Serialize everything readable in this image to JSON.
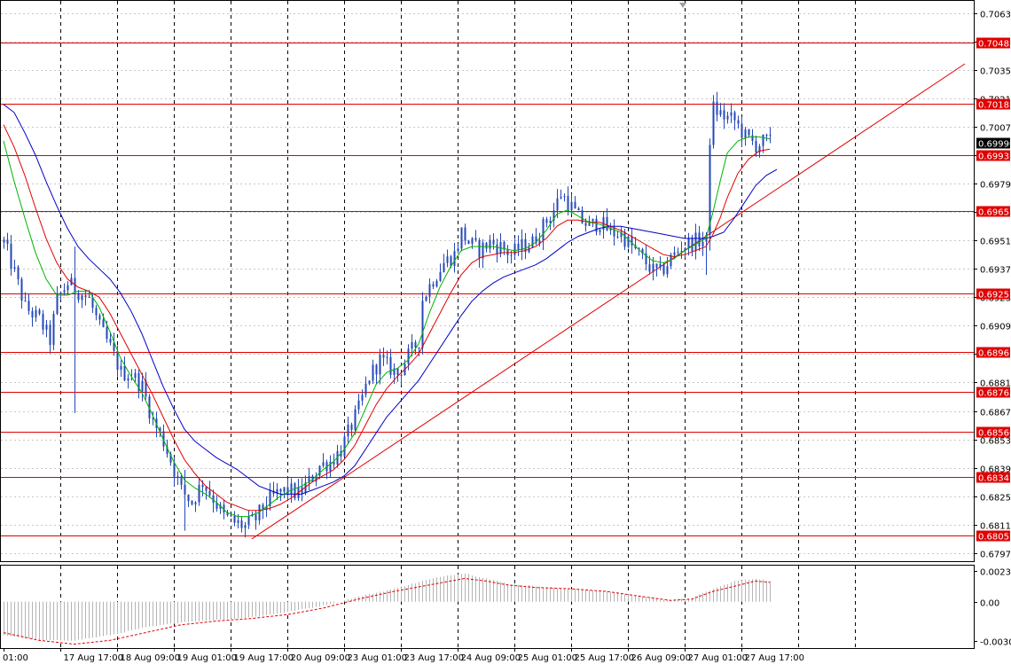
{
  "chart_data": {
    "type": "candlestick",
    "symbol": "",
    "title": "",
    "main_y_ticks": [
      "0.70630",
      "0.70490",
      "0.70350",
      "0.70210",
      "0.70070",
      "0.69930",
      "0.69790",
      "0.69650",
      "0.69510",
      "0.69370",
      "0.69230",
      "0.69090",
      "0.68950",
      "0.68810",
      "0.68670",
      "0.68530",
      "0.68390",
      "0.68250",
      "0.68110",
      "0.67970"
    ],
    "main_ylim": [
      0.6793,
      0.7069
    ],
    "x_ticks": [
      "01:00",
      "17 Aug 17:00",
      "18 Aug 09:00",
      "19 Aug 01:00",
      "19 Aug 17:00",
      "20 Aug 09:00",
      "23 Aug 01:00",
      "23 Aug 17:00",
      "24 Aug 09:00",
      "25 Aug 01:00",
      "25 Aug 17:00",
      "26 Aug 09:00",
      "27 Aug 01:00",
      "27 Aug 17:00"
    ],
    "bar_count": 217,
    "horizontal_levels": [
      {
        "label": "0.70485",
        "value": 0.70485
      },
      {
        "label": "0.70183",
        "value": 0.70183
      },
      {
        "label": "0.69931",
        "value": 0.69931
      },
      {
        "label": "0.69657",
        "value": 0.69657
      },
      {
        "label": "0.69251",
        "value": 0.69251
      },
      {
        "label": "0.68961",
        "value": 0.68961
      },
      {
        "label": "0.68765",
        "value": 0.68765
      },
      {
        "label": "0.68566",
        "value": 0.68566
      },
      {
        "label": "0.68347",
        "value": 0.68347
      },
      {
        "label": "0.68057",
        "value": 0.68057
      }
    ],
    "current_price_label": "0.69990",
    "current_price": 0.6999,
    "trendline": {
      "from": {
        "bar": 70,
        "price": 0.6804
      },
      "to": {
        "bar": 271,
        "price": 0.7038
      }
    },
    "close_path": [
      [
        0,
        0.695
      ],
      [
        3,
        0.6935
      ],
      [
        6,
        0.6918
      ],
      [
        10,
        0.6912
      ],
      [
        13,
        0.6902
      ],
      [
        15,
        0.6922
      ],
      [
        18,
        0.693
      ],
      [
        21,
        0.6926
      ],
      [
        24,
        0.6922
      ],
      [
        27,
        0.6908
      ],
      [
        30,
        0.6898
      ],
      [
        33,
        0.6886
      ],
      [
        36,
        0.6885
      ],
      [
        39,
        0.6879
      ],
      [
        42,
        0.6862
      ],
      [
        45,
        0.6852
      ],
      [
        48,
        0.6838
      ],
      [
        50,
        0.6828
      ],
      [
        53,
        0.6822
      ],
      [
        56,
        0.6832
      ],
      [
        59,
        0.6824
      ],
      [
        62,
        0.6815
      ],
      [
        65,
        0.6812
      ],
      [
        68,
        0.681
      ],
      [
        71,
        0.6814
      ],
      [
        74,
        0.6822
      ],
      [
        77,
        0.6826
      ],
      [
        80,
        0.6828
      ],
      [
        83,
        0.6826
      ],
      [
        86,
        0.6832
      ],
      [
        89,
        0.684
      ],
      [
        92,
        0.6842
      ],
      [
        95,
        0.6848
      ],
      [
        97,
        0.6856
      ],
      [
        100,
        0.6868
      ],
      [
        103,
        0.6884
      ],
      [
        106,
        0.6892
      ],
      [
        109,
        0.6888
      ],
      [
        111,
        0.6885
      ],
      [
        114,
        0.6894
      ],
      [
        117,
        0.6902
      ],
      [
        118,
        0.6922
      ],
      [
        121,
        0.6932
      ],
      [
        124,
        0.694
      ],
      [
        127,
        0.6944
      ],
      [
        129,
        0.6955
      ],
      [
        131,
        0.695
      ],
      [
        134,
        0.6946
      ],
      [
        137,
        0.695
      ],
      [
        140,
        0.6948
      ],
      [
        143,
        0.6944
      ],
      [
        146,
        0.6948
      ],
      [
        149,
        0.695
      ],
      [
        152,
        0.6958
      ],
      [
        155,
        0.6966
      ],
      [
        157,
        0.6974
      ],
      [
        159,
        0.697
      ],
      [
        162,
        0.6962
      ],
      [
        165,
        0.6958
      ],
      [
        168,
        0.696
      ],
      [
        171,
        0.6955
      ],
      [
        174,
        0.6954
      ],
      [
        177,
        0.6948
      ],
      [
        180,
        0.6942
      ],
      [
        183,
        0.6936
      ],
      [
        185,
        0.6935
      ],
      [
        188,
        0.6942
      ],
      [
        191,
        0.6948
      ],
      [
        194,
        0.695
      ],
      [
        196,
        0.6951
      ],
      [
        198,
        0.695
      ],
      [
        199,
        0.6998
      ],
      [
        200,
        0.7016
      ],
      [
        203,
        0.7012
      ],
      [
        206,
        0.701
      ],
      [
        209,
        0.7002
      ],
      [
        212,
        0.6998
      ],
      [
        215,
        0.7
      ],
      [
        216,
        0.6999
      ]
    ],
    "ma_fast_path": [
      [
        0,
        0.7
      ],
      [
        3,
        0.698
      ],
      [
        6,
        0.6962
      ],
      [
        9,
        0.6945
      ],
      [
        12,
        0.6932
      ],
      [
        15,
        0.6924
      ],
      [
        18,
        0.6924
      ],
      [
        21,
        0.6926
      ],
      [
        24,
        0.6926
      ],
      [
        27,
        0.6918
      ],
      [
        30,
        0.6906
      ],
      [
        33,
        0.6893
      ],
      [
        36,
        0.6884
      ],
      [
        39,
        0.6876
      ],
      [
        42,
        0.6865
      ],
      [
        45,
        0.6853
      ],
      [
        48,
        0.6842
      ],
      [
        51,
        0.6833
      ],
      [
        54,
        0.6829
      ],
      [
        57,
        0.6826
      ],
      [
        60,
        0.6822
      ],
      [
        63,
        0.6817
      ],
      [
        66,
        0.6815
      ],
      [
        69,
        0.6815
      ],
      [
        72,
        0.6817
      ],
      [
        75,
        0.6821
      ],
      [
        78,
        0.6825
      ],
      [
        81,
        0.6828
      ],
      [
        84,
        0.683
      ],
      [
        87,
        0.6833
      ],
      [
        90,
        0.6838
      ],
      [
        93,
        0.6842
      ],
      [
        96,
        0.6848
      ],
      [
        99,
        0.6856
      ],
      [
        102,
        0.6868
      ],
      [
        105,
        0.688
      ],
      [
        108,
        0.6886
      ],
      [
        111,
        0.6888
      ],
      [
        114,
        0.6892
      ],
      [
        117,
        0.69
      ],
      [
        120,
        0.6915
      ],
      [
        123,
        0.6928
      ],
      [
        126,
        0.6938
      ],
      [
        129,
        0.6946
      ],
      [
        132,
        0.6948
      ],
      [
        135,
        0.6948
      ],
      [
        138,
        0.6948
      ],
      [
        141,
        0.6947
      ],
      [
        144,
        0.6946
      ],
      [
        147,
        0.6947
      ],
      [
        150,
        0.695
      ],
      [
        153,
        0.6956
      ],
      [
        156,
        0.6964
      ],
      [
        159,
        0.6966
      ],
      [
        162,
        0.6963
      ],
      [
        165,
        0.696
      ],
      [
        168,
        0.6959
      ],
      [
        171,
        0.6957
      ],
      [
        174,
        0.6955
      ],
      [
        177,
        0.695
      ],
      [
        180,
        0.6945
      ],
      [
        183,
        0.6941
      ],
      [
        186,
        0.694
      ],
      [
        189,
        0.6942
      ],
      [
        192,
        0.6946
      ],
      [
        195,
        0.6949
      ],
      [
        198,
        0.6952
      ],
      [
        200,
        0.6965
      ],
      [
        202,
        0.698
      ],
      [
        204,
        0.6994
      ],
      [
        207,
        0.7
      ],
      [
        210,
        0.7002
      ],
      [
        213,
        0.7002
      ],
      [
        216,
        0.7001
      ]
    ],
    "ma_mid_path": [
      [
        0,
        0.7008
      ],
      [
        3,
        0.6997
      ],
      [
        6,
        0.6983
      ],
      [
        9,
        0.6967
      ],
      [
        12,
        0.6952
      ],
      [
        15,
        0.694
      ],
      [
        18,
        0.6932
      ],
      [
        21,
        0.6928
      ],
      [
        24,
        0.6926
      ],
      [
        27,
        0.6923
      ],
      [
        30,
        0.6915
      ],
      [
        33,
        0.6905
      ],
      [
        36,
        0.6895
      ],
      [
        39,
        0.6885
      ],
      [
        42,
        0.6875
      ],
      [
        45,
        0.6864
      ],
      [
        48,
        0.6853
      ],
      [
        51,
        0.6843
      ],
      [
        54,
        0.6836
      ],
      [
        57,
        0.683
      ],
      [
        60,
        0.6826
      ],
      [
        63,
        0.6822
      ],
      [
        66,
        0.682
      ],
      [
        69,
        0.6818
      ],
      [
        72,
        0.6818
      ],
      [
        75,
        0.6819
      ],
      [
        78,
        0.6821
      ],
      [
        81,
        0.6824
      ],
      [
        84,
        0.6828
      ],
      [
        87,
        0.6832
      ],
      [
        90,
        0.6835
      ],
      [
        93,
        0.6838
      ],
      [
        96,
        0.6843
      ],
      [
        99,
        0.685
      ],
      [
        102,
        0.686
      ],
      [
        105,
        0.687
      ],
      [
        108,
        0.6878
      ],
      [
        111,
        0.6884
      ],
      [
        114,
        0.6889
      ],
      [
        117,
        0.6895
      ],
      [
        120,
        0.6905
      ],
      [
        123,
        0.6915
      ],
      [
        126,
        0.6925
      ],
      [
        129,
        0.6934
      ],
      [
        132,
        0.694
      ],
      [
        135,
        0.6943
      ],
      [
        138,
        0.6944
      ],
      [
        141,
        0.6945
      ],
      [
        144,
        0.6945
      ],
      [
        147,
        0.6946
      ],
      [
        150,
        0.6948
      ],
      [
        153,
        0.6952
      ],
      [
        156,
        0.6958
      ],
      [
        159,
        0.6961
      ],
      [
        162,
        0.6961
      ],
      [
        165,
        0.696
      ],
      [
        168,
        0.696
      ],
      [
        171,
        0.6958
      ],
      [
        174,
        0.6956
      ],
      [
        177,
        0.6953
      ],
      [
        180,
        0.695
      ],
      [
        183,
        0.6947
      ],
      [
        186,
        0.6944
      ],
      [
        189,
        0.6943
      ],
      [
        192,
        0.6944
      ],
      [
        195,
        0.6946
      ],
      [
        198,
        0.6948
      ],
      [
        200,
        0.6954
      ],
      [
        202,
        0.6962
      ],
      [
        204,
        0.6972
      ],
      [
        207,
        0.6984
      ],
      [
        210,
        0.6991
      ],
      [
        213,
        0.6995
      ],
      [
        216,
        0.6996
      ]
    ],
    "ma_slow_path": [
      [
        0,
        0.7018
      ],
      [
        3,
        0.7014
      ],
      [
        6,
        0.7004
      ],
      [
        9,
        0.6993
      ],
      [
        12,
        0.698
      ],
      [
        15,
        0.6968
      ],
      [
        18,
        0.6957
      ],
      [
        21,
        0.6948
      ],
      [
        24,
        0.6942
      ],
      [
        27,
        0.6937
      ],
      [
        30,
        0.6932
      ],
      [
        33,
        0.6925
      ],
      [
        36,
        0.6916
      ],
      [
        39,
        0.6905
      ],
      [
        42,
        0.6892
      ],
      [
        45,
        0.6879
      ],
      [
        48,
        0.6868
      ],
      [
        51,
        0.6858
      ],
      [
        54,
        0.6852
      ],
      [
        57,
        0.6848
      ],
      [
        60,
        0.6844
      ],
      [
        63,
        0.6841
      ],
      [
        66,
        0.6838
      ],
      [
        69,
        0.6834
      ],
      [
        72,
        0.683
      ],
      [
        75,
        0.6828
      ],
      [
        78,
        0.6826
      ],
      [
        81,
        0.6826
      ],
      [
        84,
        0.6826
      ],
      [
        87,
        0.6828
      ],
      [
        90,
        0.683
      ],
      [
        93,
        0.6832
      ],
      [
        96,
        0.6835
      ],
      [
        99,
        0.684
      ],
      [
        102,
        0.6848
      ],
      [
        105,
        0.6856
      ],
      [
        108,
        0.6864
      ],
      [
        111,
        0.687
      ],
      [
        114,
        0.6876
      ],
      [
        117,
        0.6882
      ],
      [
        120,
        0.689
      ],
      [
        123,
        0.6898
      ],
      [
        126,
        0.6906
      ],
      [
        129,
        0.6914
      ],
      [
        132,
        0.6921
      ],
      [
        135,
        0.6926
      ],
      [
        138,
        0.693
      ],
      [
        141,
        0.6933
      ],
      [
        144,
        0.6935
      ],
      [
        147,
        0.6937
      ],
      [
        150,
        0.6939
      ],
      [
        153,
        0.6942
      ],
      [
        156,
        0.6946
      ],
      [
        159,
        0.695
      ],
      [
        162,
        0.6953
      ],
      [
        165,
        0.6955
      ],
      [
        168,
        0.6957
      ],
      [
        171,
        0.6958
      ],
      [
        174,
        0.6958
      ],
      [
        177,
        0.6957
      ],
      [
        180,
        0.6956
      ],
      [
        183,
        0.6955
      ],
      [
        186,
        0.6954
      ],
      [
        189,
        0.6953
      ],
      [
        192,
        0.6952
      ],
      [
        195,
        0.6952
      ],
      [
        198,
        0.6952
      ],
      [
        200,
        0.6953
      ],
      [
        203,
        0.6955
      ],
      [
        206,
        0.6962
      ],
      [
        209,
        0.697
      ],
      [
        212,
        0.6978
      ],
      [
        215,
        0.6983
      ],
      [
        218,
        0.6986
      ]
    ],
    "oscillator": {
      "y_ticks": [
        "0.00236",
        "0.00",
        "-0.00303"
      ],
      "ylim": [
        -0.0036,
        0.0028
      ],
      "hist_path": [
        [
          0,
          -0.0026
        ],
        [
          10,
          -0.003
        ],
        [
          20,
          -0.003
        ],
        [
          30,
          -0.0026
        ],
        [
          40,
          -0.002
        ],
        [
          50,
          -0.0016
        ],
        [
          60,
          -0.0014
        ],
        [
          70,
          -0.0012
        ],
        [
          80,
          -0.0008
        ],
        [
          90,
          -0.0003
        ],
        [
          100,
          0.0004
        ],
        [
          110,
          0.001
        ],
        [
          118,
          0.0016
        ],
        [
          124,
          0.002
        ],
        [
          130,
          0.0022
        ],
        [
          136,
          0.0018
        ],
        [
          142,
          0.0014
        ],
        [
          150,
          0.0012
        ],
        [
          160,
          0.001
        ],
        [
          170,
          0.0008
        ],
        [
          180,
          0.0004
        ],
        [
          188,
          0.0001
        ],
        [
          194,
          0.0003
        ],
        [
          200,
          0.001
        ],
        [
          206,
          0.0016
        ],
        [
          212,
          0.0018
        ],
        [
          216,
          0.0016
        ]
      ],
      "signal_path": [
        [
          0,
          -0.0024
        ],
        [
          10,
          -0.003
        ],
        [
          20,
          -0.0033
        ],
        [
          30,
          -0.003
        ],
        [
          40,
          -0.0024
        ],
        [
          50,
          -0.0018
        ],
        [
          60,
          -0.0015
        ],
        [
          70,
          -0.0013
        ],
        [
          80,
          -0.001
        ],
        [
          90,
          -0.0005
        ],
        [
          100,
          0.0002
        ],
        [
          110,
          0.0008
        ],
        [
          118,
          0.0012
        ],
        [
          124,
          0.0015
        ],
        [
          130,
          0.0018
        ],
        [
          136,
          0.0016
        ],
        [
          142,
          0.0013
        ],
        [
          150,
          0.0011
        ],
        [
          160,
          0.001
        ],
        [
          170,
          0.0008
        ],
        [
          180,
          0.0004
        ],
        [
          188,
          0.0001
        ],
        [
          194,
          0.0002
        ],
        [
          200,
          0.0008
        ],
        [
          206,
          0.0012
        ],
        [
          212,
          0.0016
        ],
        [
          216,
          0.0015
        ]
      ]
    },
    "colors": {
      "candle": "#2448b8",
      "level_line": "#e00000",
      "level_label_bg": "#e00000",
      "level_label_text": "#ffffff",
      "ma_fast": "#00b400",
      "ma_mid": "#e00000",
      "ma_slow": "#0000c8",
      "grid": "#c8c8c8",
      "oscillator_hist": "#b4b4b4",
      "oscillator_signal": "#e00000",
      "current_label_bg": "#000000",
      "current_label_text": "#ffffff"
    }
  }
}
